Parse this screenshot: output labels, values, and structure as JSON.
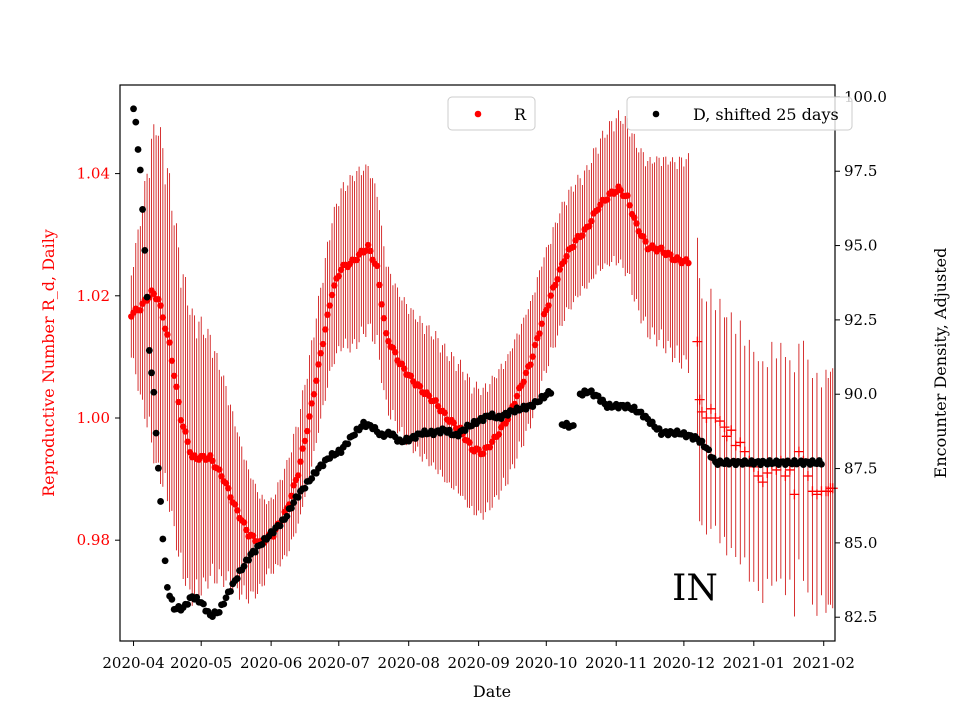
{
  "chart_data": {
    "type": "scatter",
    "xlabel": "Date",
    "ylabel_left": "Reproductive Number R_d, Daily",
    "ylabel_right": "Encounter Density, Adjusted",
    "annotation": "IN",
    "x_range_days": [
      -6,
      311
    ],
    "ylim_left": [
      0.9635,
      1.0545
    ],
    "ylim_right": [
      81.7,
      100.4
    ],
    "x_ticks": [
      {
        "day": 0,
        "label": "2020-04"
      },
      {
        "day": 30,
        "label": "2020-05"
      },
      {
        "day": 61,
        "label": "2020-06"
      },
      {
        "day": 91,
        "label": "2020-07"
      },
      {
        "day": 122,
        "label": "2020-08"
      },
      {
        "day": 153,
        "label": "2020-09"
      },
      {
        "day": 183,
        "label": "2020-10"
      },
      {
        "day": 214,
        "label": "2020-11"
      },
      {
        "day": 244,
        "label": "2020-12"
      },
      {
        "day": 275,
        "label": "2021-01"
      },
      {
        "day": 306,
        "label": "2021-02"
      }
    ],
    "y_ticks_left": [
      {
        "v": 0.98,
        "label": "0.98"
      },
      {
        "v": 1.0,
        "label": "1.00"
      },
      {
        "v": 1.02,
        "label": "1.02"
      },
      {
        "v": 1.04,
        "label": "1.04"
      }
    ],
    "y_ticks_right": [
      {
        "v": 82.5,
        "label": "82.5"
      },
      {
        "v": 85.0,
        "label": "85.0"
      },
      {
        "v": 87.5,
        "label": "87.5"
      },
      {
        "v": 90.0,
        "label": "90.0"
      },
      {
        "v": 92.5,
        "label": "92.5"
      },
      {
        "v": 95.0,
        "label": "95.0"
      },
      {
        "v": 97.5,
        "label": "97.5"
      },
      {
        "v": 100.0,
        "label": "100.0"
      }
    ],
    "legend_r": {
      "label": "R",
      "color": "#ff0000"
    },
    "legend_d": {
      "label": "D, shifted 25 days",
      "color": "#000000"
    },
    "series_R": {
      "name": "R",
      "color": "#ff0000",
      "knots": [
        [
          -1,
          1.017
        ],
        [
          3,
          1.018
        ],
        [
          8,
          1.0205
        ],
        [
          11,
          1.0195
        ],
        [
          16,
          1.012
        ],
        [
          21,
          1.0
        ],
        [
          26,
          0.9935
        ],
        [
          30,
          0.9935
        ],
        [
          34,
          0.9935
        ],
        [
          40,
          0.99
        ],
        [
          45,
          0.9855
        ],
        [
          51,
          0.981
        ],
        [
          56,
          0.9795
        ],
        [
          62,
          0.981
        ],
        [
          68,
          0.985
        ],
        [
          73,
          0.991
        ],
        [
          78,
          1.0
        ],
        [
          83,
          1.0105
        ],
        [
          88,
          1.0205
        ],
        [
          92,
          1.0245
        ],
        [
          97,
          1.0255
        ],
        [
          101,
          1.027
        ],
        [
          104,
          1.028
        ],
        [
          108,
          1.0245
        ],
        [
          112,
          1.0135
        ],
        [
          118,
          1.009
        ],
        [
          123,
          1.0065
        ],
        [
          128,
          1.0045
        ],
        [
          134,
          1.0025
        ],
        [
          139,
          1.0
        ],
        [
          145,
          0.998
        ],
        [
          150,
          0.995
        ],
        [
          155,
          0.9943
        ],
        [
          160,
          0.9965
        ],
        [
          166,
          1.0
        ],
        [
          171,
          1.0045
        ],
        [
          176,
          1.009
        ],
        [
          181,
          1.0155
        ],
        [
          186,
          1.021
        ],
        [
          191,
          1.026
        ],
        [
          196,
          1.029
        ],
        [
          201,
          1.031
        ],
        [
          206,
          1.0345
        ],
        [
          211,
          1.0365
        ],
        [
          215,
          1.0375
        ],
        [
          219,
          1.036
        ],
        [
          223,
          1.0315
        ],
        [
          228,
          1.028
        ],
        [
          234,
          1.0275
        ],
        [
          240,
          1.026
        ],
        [
          246,
          1.0255
        ]
      ],
      "err_knots": [
        [
          -1,
          0.007
        ],
        [
          10,
          0.03
        ],
        [
          30,
          0.023
        ],
        [
          60,
          0.006
        ],
        [
          98,
          0.015
        ],
        [
          115,
          0.012
        ],
        [
          150,
          0.011
        ],
        [
          200,
          0.01
        ],
        [
          246,
          0.018
        ]
      ],
      "end_day": 246,
      "markers_plus": [
        [
          250,
          1.0125
        ],
        [
          251,
          1.003
        ],
        [
          252,
          1.001
        ],
        [
          254,
          1.0
        ],
        [
          256,
          1.0015
        ],
        [
          258,
          1.0
        ],
        [
          260,
          0.9995
        ],
        [
          262,
          0.9985
        ],
        [
          263,
          0.997
        ],
        [
          265,
          0.998
        ],
        [
          267,
          0.9955
        ],
        [
          269,
          0.996
        ],
        [
          271,
          0.9945
        ],
        [
          273,
          0.993
        ],
        [
          275,
          0.992
        ],
        [
          277,
          0.9905
        ],
        [
          279,
          0.9895
        ],
        [
          281,
          0.991
        ],
        [
          283,
          0.9925
        ],
        [
          285,
          0.9915
        ],
        [
          287,
          0.993
        ],
        [
          289,
          0.9905
        ],
        [
          291,
          0.9915
        ],
        [
          293,
          0.9875
        ],
        [
          295,
          0.9945
        ],
        [
          297,
          0.993
        ],
        [
          299,
          0.9905
        ],
        [
          301,
          0.988
        ],
        [
          303,
          0.9875
        ],
        [
          305,
          0.988
        ],
        [
          307,
          0.988
        ],
        [
          308,
          0.988
        ],
        [
          309,
          0.9885
        ],
        [
          310,
          0.9885
        ]
      ],
      "markers_plus_err": 0.02
    },
    "series_D": {
      "name": "D, shifted 25 days",
      "color": "#000000",
      "knots": [
        [
          0,
          99.6
        ],
        [
          1,
          99.1
        ],
        [
          3,
          97.5
        ],
        [
          5,
          94.9
        ],
        [
          7,
          91.5
        ],
        [
          9,
          90.0
        ],
        [
          11,
          87.5
        ],
        [
          13,
          85.2
        ],
        [
          15,
          83.5
        ],
        [
          18,
          82.8
        ],
        [
          22,
          82.8
        ],
        [
          26,
          83.2
        ],
        [
          30,
          83.0
        ],
        [
          34,
          82.55
        ],
        [
          38,
          82.7
        ],
        [
          42,
          83.3
        ],
        [
          47,
          84.0
        ],
        [
          52,
          84.6
        ],
        [
          57,
          85.0
        ],
        [
          62,
          85.4
        ],
        [
          67,
          85.8
        ],
        [
          72,
          86.5
        ],
        [
          77,
          87.0
        ],
        [
          82,
          87.5
        ],
        [
          87,
          87.9
        ],
        [
          92,
          88.1
        ],
        [
          97,
          88.6
        ],
        [
          102,
          89.0
        ],
        [
          106,
          88.9
        ],
        [
          110,
          88.6
        ],
        [
          114,
          88.7
        ],
        [
          118,
          88.4
        ],
        [
          123,
          88.5
        ],
        [
          128,
          88.7
        ],
        [
          133,
          88.7
        ],
        [
          138,
          88.8
        ],
        [
          143,
          88.6
        ],
        [
          148,
          88.9
        ],
        [
          153,
          89.1
        ],
        [
          158,
          89.3
        ],
        [
          162,
          89.2
        ],
        [
          167,
          89.4
        ],
        [
          171,
          89.5
        ],
        [
          176,
          89.6
        ],
        [
          180,
          89.8
        ],
        [
          185,
          90.1
        ]
      ],
      "knots2": [
        [
          190,
          89.0
        ],
        [
          195,
          88.9
        ]
      ],
      "knots3": [
        [
          198,
          90.0
        ],
        [
          202,
          90.1
        ],
        [
          206,
          89.9
        ],
        [
          210,
          89.6
        ],
        [
          214,
          89.6
        ],
        [
          218,
          89.6
        ],
        [
          222,
          89.5
        ],
        [
          226,
          89.3
        ],
        [
          230,
          89.0
        ],
        [
          234,
          88.7
        ],
        [
          238,
          88.7
        ],
        [
          242,
          88.7
        ],
        [
          246,
          88.6
        ],
        [
          250,
          88.5
        ],
        [
          254,
          88.2
        ],
        [
          258,
          87.7
        ],
        [
          263,
          87.7
        ],
        [
          300,
          87.7
        ],
        [
          305,
          87.7
        ]
      ]
    }
  }
}
